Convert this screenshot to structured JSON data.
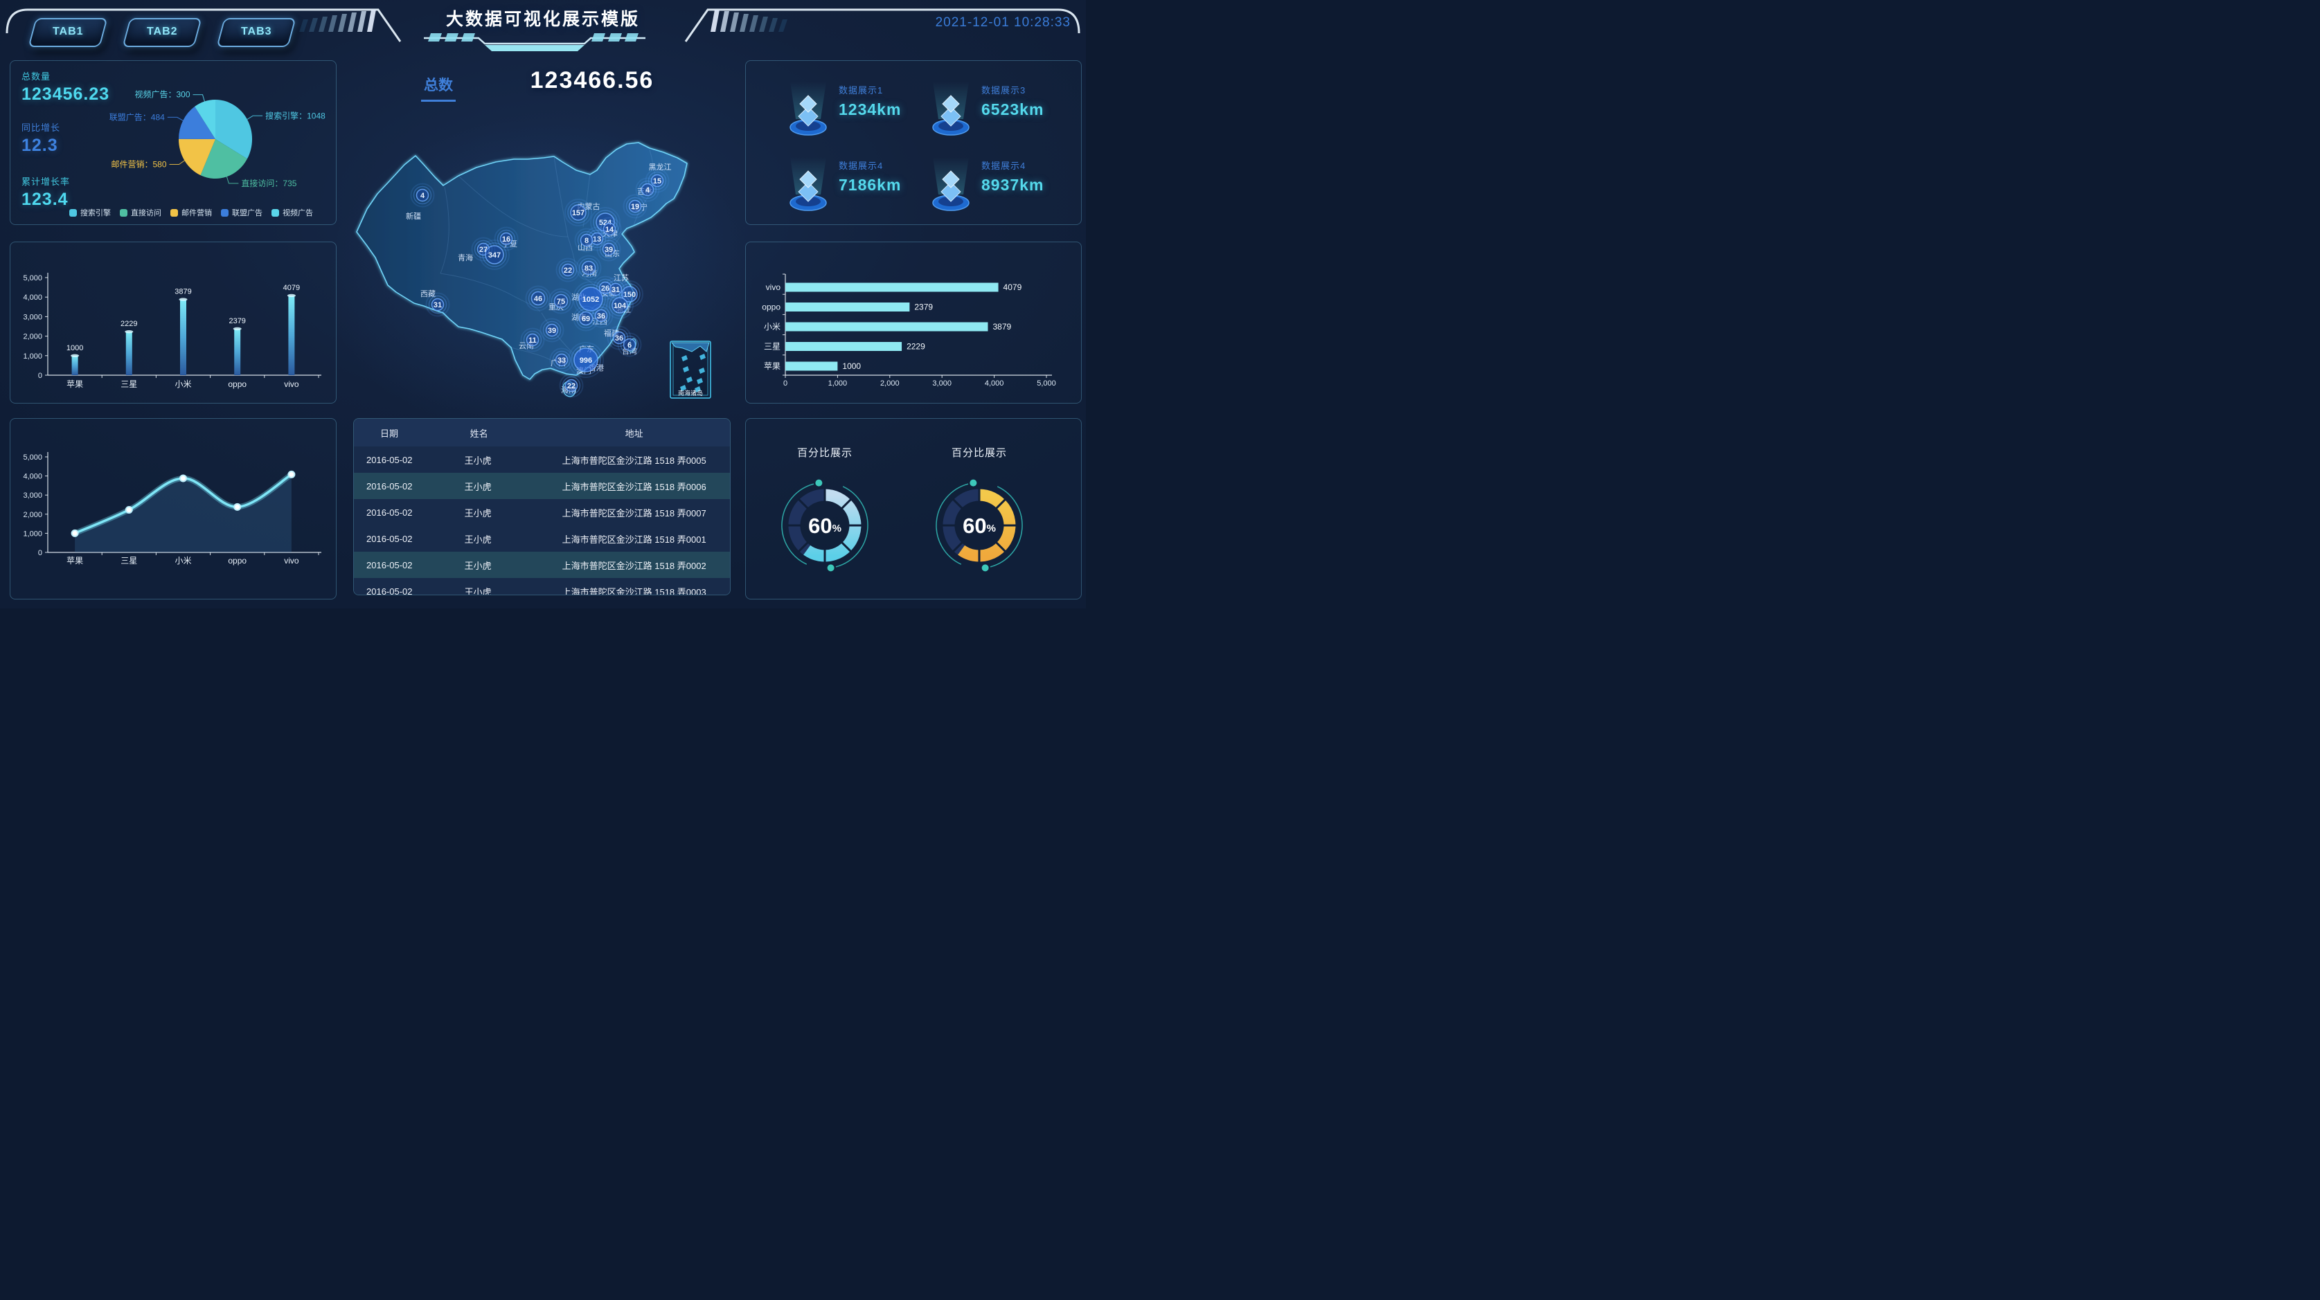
{
  "header": {
    "title": "大数据可视化展示模版",
    "datetime": "2021-12-01 10:28:33",
    "tabs": [
      "TAB1",
      "TAB2",
      "TAB3"
    ]
  },
  "colors": {
    "accent_cyan": "#53d7ee",
    "accent_blue": "#3f7fd9",
    "pie": [
      "#4fc7e2",
      "#4fbfa2",
      "#f2c347",
      "#3c7edc",
      "#5ad6ea"
    ],
    "bar_gradient": [
      "#7deaf6",
      "#4fa8d8",
      "#2b5a9e"
    ],
    "hbar_fill": "#8fe9f2",
    "line_color": "#7fe6f7",
    "gauge_track": "#20335f",
    "gauge_blue": [
      "#c2dcf0",
      "#5ccfe8"
    ],
    "gauge_yellow": [
      "#f3c94b",
      "#f0a93c"
    ]
  },
  "left_stats": [
    {
      "label": "总数量",
      "value": "123456.23",
      "tone": "cyan"
    },
    {
      "label": "同比增长",
      "value": "12.3",
      "tone": "blue"
    },
    {
      "label": "累计增长率",
      "value": "123.4",
      "tone": "cyan"
    }
  ],
  "center": {
    "label": "总数",
    "value": "123466.56"
  },
  "data_cards": [
    {
      "label": "数据展示1",
      "value": "1234km"
    },
    {
      "label": "数据展示3",
      "value": "6523km"
    },
    {
      "label": "数据展示4",
      "value": "7186km"
    },
    {
      "label": "数据展示4",
      "value": "8937km"
    }
  ],
  "table": {
    "headers": [
      "日期",
      "姓名",
      "地址"
    ],
    "rows": [
      [
        "2016-05-02",
        "王小虎",
        "上海市普陀区金沙江路 1518 弄0005"
      ],
      [
        "2016-05-02",
        "王小虎",
        "上海市普陀区金沙江路 1518 弄0006"
      ],
      [
        "2016-05-02",
        "王小虎",
        "上海市普陀区金沙江路 1518 弄0007"
      ],
      [
        "2016-05-02",
        "王小虎",
        "上海市普陀区金沙江路 1518 弄0001"
      ],
      [
        "2016-05-02",
        "王小虎",
        "上海市普陀区金沙江路 1518 弄0002"
      ],
      [
        "2016-05-02",
        "王小虎",
        "上海市普陀区金沙江路 1518 弄0003"
      ]
    ],
    "highlight_rows": [
      1,
      4
    ]
  },
  "gauges": [
    {
      "title": "百分比展示",
      "value": 60,
      "suffix": "%",
      "theme": "blue"
    },
    {
      "title": "百分比展示",
      "value": 60,
      "suffix": "%",
      "theme": "yellow"
    }
  ],
  "chart_data": [
    {
      "id": "pie",
      "type": "pie",
      "legend_position": "bottom",
      "series": [
        {
          "name": "搜索引擎",
          "value": 1048
        },
        {
          "name": "直接访问",
          "value": 735
        },
        {
          "name": "邮件营销",
          "value": 580
        },
        {
          "name": "联盟广告",
          "value": 484
        },
        {
          "name": "视频广告",
          "value": 300
        }
      ]
    },
    {
      "id": "bar",
      "type": "bar",
      "categories": [
        "苹果",
        "三星",
        "小米",
        "oppo",
        "vivo"
      ],
      "values": [
        1000,
        2229,
        3879,
        2379,
        4079
      ],
      "ylim": [
        0,
        5000
      ],
      "ticks": [
        0,
        1000,
        2000,
        3000,
        4000,
        5000
      ]
    },
    {
      "id": "line",
      "type": "line",
      "categories": [
        "苹果",
        "三星",
        "小米",
        "oppo",
        "vivo"
      ],
      "values": [
        1000,
        2229,
        3879,
        2379,
        4079
      ],
      "ylim": [
        0,
        5000
      ],
      "ticks": [
        0,
        1000,
        2000,
        3000,
        4000,
        5000
      ]
    },
    {
      "id": "hbar",
      "type": "bar-horizontal",
      "categories": [
        "vivo",
        "oppo",
        "小米",
        "三星",
        "苹果"
      ],
      "values": [
        4079,
        2379,
        3879,
        2229,
        1000
      ],
      "xlim": [
        0,
        5000
      ],
      "ticks": [
        0,
        1000,
        2000,
        3000,
        4000,
        5000
      ]
    },
    {
      "id": "map",
      "type": "map-bubbles",
      "region": "china",
      "inset_label": "南海诸岛",
      "points": [
        {
          "name": "新疆",
          "value": 4,
          "x": 110,
          "y": 92,
          "lx": 97,
          "ly": 126
        },
        {
          "name": "西藏",
          "value": 31,
          "x": 132,
          "y": 250,
          "lx": 118,
          "ly": 238
        },
        {
          "name": "青海",
          "value": 27,
          "x": 198,
          "y": 170,
          "lx": 172,
          "ly": 186
        },
        {
          "name": "甘肃",
          "value": 347,
          "x": 214,
          "y": 178,
          "lx": null,
          "ly": null
        },
        {
          "name": "宁夏",
          "value": 16,
          "x": 231,
          "y": 155,
          "lx": 236,
          "ly": 166
        },
        {
          "name": "陕西",
          "value": 22,
          "x": 320,
          "y": 200,
          "lx": null,
          "ly": null
        },
        {
          "name": "内蒙古",
          "value": 157,
          "x": 335,
          "y": 117,
          "lx": 350,
          "ly": 112
        },
        {
          "name": "黑龙江",
          "value": 15,
          "x": 449,
          "y": 71,
          "lx": 453,
          "ly": 55
        },
        {
          "name": "吉林",
          "value": 4,
          "x": 435,
          "y": 84,
          "lx": 431,
          "ly": 90
        },
        {
          "name": "辽宁",
          "value": 19,
          "x": 417,
          "y": 108,
          "lx": 424,
          "ly": 113
        },
        {
          "name": "北京",
          "value": 524,
          "x": 374,
          "y": 131,
          "lx": null,
          "ly": null
        },
        {
          "name": "天津",
          "value": 14,
          "x": 380,
          "y": 141,
          "lx": 381,
          "ly": 151
        },
        {
          "name": "河北",
          "value": 13,
          "x": 362,
          "y": 155,
          "lx": null,
          "ly": null
        },
        {
          "name": "山西",
          "value": 8,
          "x": 347,
          "y": 157,
          "lx": 345,
          "ly": 171
        },
        {
          "name": "山东",
          "value": 39,
          "x": 379,
          "y": 170,
          "lx": 384,
          "ly": 180
        },
        {
          "name": "河南",
          "value": 83,
          "x": 350,
          "y": 197,
          "lx": 351,
          "ly": 208
        },
        {
          "name": "江苏",
          "value": 150,
          "x": 409,
          "y": 235,
          "lx": 397,
          "ly": 215
        },
        {
          "name": "安徽",
          "value": 26,
          "x": 374,
          "y": 226,
          "lx": 379,
          "ly": 237
        },
        {
          "name": "上海",
          "value": 31,
          "x": 389,
          "y": 228,
          "lx": null,
          "ly": null
        },
        {
          "name": "湖北",
          "value": 1052,
          "x": 353,
          "y": 242,
          "lx": 336,
          "ly": 243
        },
        {
          "name": "重庆",
          "value": 75,
          "x": 310,
          "y": 245,
          "lx": 303,
          "ly": 257
        },
        {
          "name": "四川",
          "value": 46,
          "x": 277,
          "y": 241,
          "lx": null,
          "ly": null
        },
        {
          "name": "湖南",
          "value": 69,
          "x": 346,
          "y": 270,
          "lx": 336,
          "ly": 272
        },
        {
          "name": "江西",
          "value": 36,
          "x": 368,
          "y": 266,
          "lx": 366,
          "ly": 278
        },
        {
          "name": "浙江",
          "value": 104,
          "x": 395,
          "y": 251,
          "lx": 400,
          "ly": 261
        },
        {
          "name": "贵州",
          "value": 39,
          "x": 297,
          "y": 287,
          "lx": null,
          "ly": null
        },
        {
          "name": "云南",
          "value": 11,
          "x": 269,
          "y": 301,
          "lx": 260,
          "ly": 313
        },
        {
          "name": "广西",
          "value": 33,
          "x": 311,
          "y": 330,
          "lx": 306,
          "ly": 338
        },
        {
          "name": "广东",
          "value": 996,
          "x": 346,
          "y": 330,
          "lx": 347,
          "ly": 318
        },
        {
          "name": "香港",
          "value": null,
          "x": null,
          "y": null,
          "lx": 361,
          "ly": 345
        },
        {
          "name": "澳门",
          "value": null,
          "x": null,
          "y": null,
          "lx": 343,
          "ly": 349
        },
        {
          "name": "福建",
          "value": 36,
          "x": 394,
          "y": 298,
          "lx": 383,
          "ly": 295
        },
        {
          "name": "台湾",
          "value": 6,
          "x": 409,
          "y": 308,
          "lx": 409,
          "ly": 321
        },
        {
          "name": "海南",
          "value": 22,
          "x": 325,
          "y": 367,
          "lx": 321,
          "ly": 377
        }
      ]
    },
    {
      "id": "gauges",
      "type": "gauge",
      "series": [
        {
          "title": "百分比展示",
          "value": 60,
          "max": 100,
          "theme": "blue"
        },
        {
          "title": "百分比展示",
          "value": 60,
          "max": 100,
          "theme": "yellow"
        }
      ]
    }
  ]
}
